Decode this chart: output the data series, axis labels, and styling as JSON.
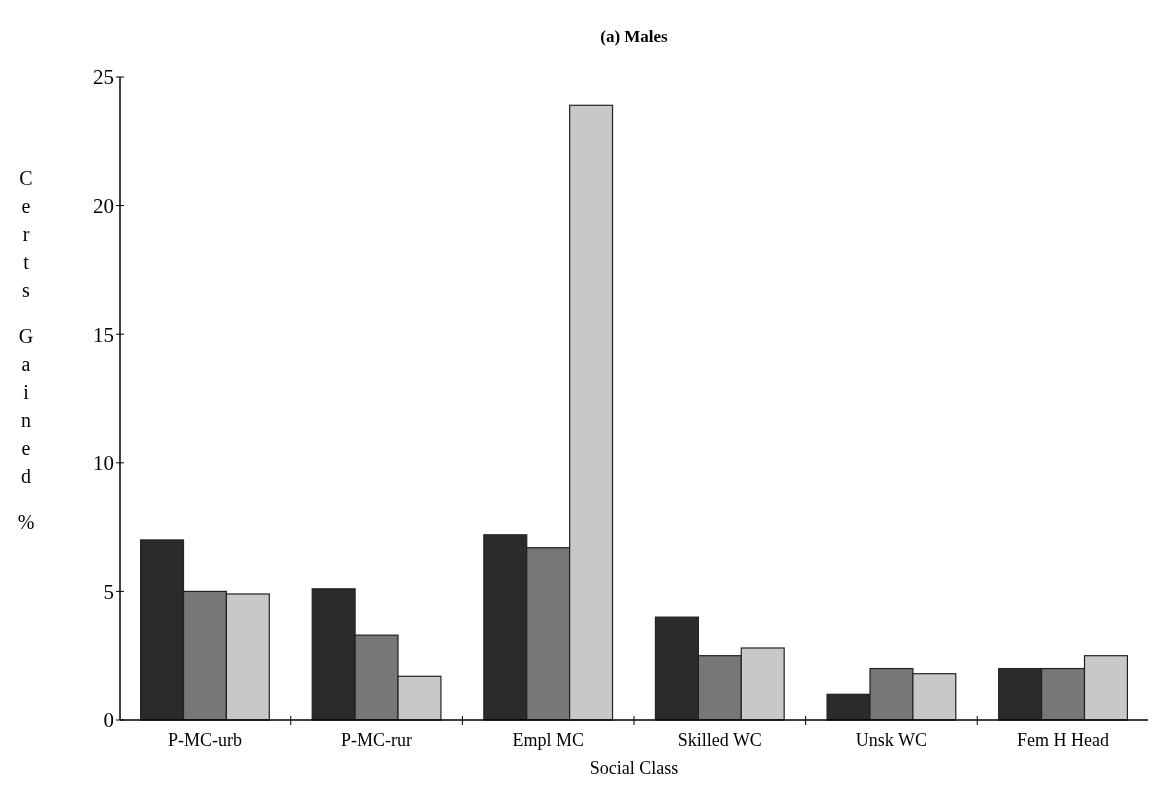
{
  "chart_data": {
    "type": "bar",
    "title": "(a) Males",
    "xlabel": "Social Class",
    "ylabel": "Certs Gained %",
    "categories": [
      "P-MC-urb",
      "P-MC-rur",
      "Empl MC",
      "Skilled WC",
      "Unsk WC",
      "Fem H Head"
    ],
    "series": [
      {
        "color": "#2b2b2b",
        "values": [
          7.0,
          5.1,
          7.2,
          4.0,
          1.0,
          2.0
        ]
      },
      {
        "color": "#777777",
        "values": [
          5.0,
          3.3,
          6.7,
          2.5,
          2.0,
          2.0
        ]
      },
      {
        "color": "#c8c8c8",
        "values": [
          4.9,
          1.7,
          23.9,
          2.8,
          1.8,
          2.5
        ]
      }
    ],
    "ylim": [
      0,
      25
    ],
    "yticks": [
      0,
      5,
      10,
      15,
      20,
      25
    ]
  }
}
